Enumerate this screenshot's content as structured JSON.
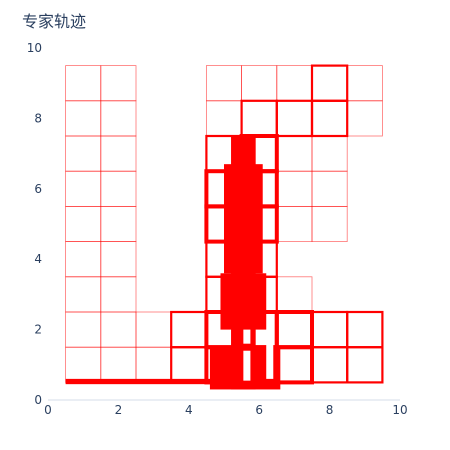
{
  "chart_data": {
    "type": "line",
    "title": "专家轨迹",
    "xlabel": "",
    "ylabel": "",
    "xlim": [
      0,
      10
    ],
    "ylim": [
      0,
      10
    ],
    "x_ticks": [
      0,
      2,
      4,
      6,
      8,
      10
    ],
    "y_ticks": [
      0,
      2,
      4,
      6,
      8,
      10
    ],
    "grid": false,
    "line_color": "#ff0000",
    "background": "#ffffff",
    "cell_size": 1,
    "grid_cells": [
      [
        0.5,
        0.5,
        1
      ],
      [
        0.5,
        1.5,
        1
      ],
      [
        0.5,
        2.5,
        1
      ],
      [
        0.5,
        3.5,
        1
      ],
      [
        0.5,
        4.5,
        1
      ],
      [
        0.5,
        5.5,
        1
      ],
      [
        0.5,
        6.5,
        1
      ],
      [
        0.5,
        7.5,
        1
      ],
      [
        0.5,
        8.5,
        1
      ],
      [
        1.5,
        0.5,
        1
      ],
      [
        1.5,
        1.5,
        1
      ],
      [
        1.5,
        2.5,
        1
      ],
      [
        1.5,
        3.5,
        1
      ],
      [
        1.5,
        4.5,
        1
      ],
      [
        1.5,
        5.5,
        1
      ],
      [
        1.5,
        6.5,
        1
      ],
      [
        1.5,
        7.5,
        1
      ],
      [
        1.5,
        8.5,
        1
      ],
      [
        2.5,
        0.5,
        1
      ],
      [
        2.5,
        1.5,
        1
      ],
      [
        3.5,
        0.5,
        2
      ],
      [
        3.5,
        1.5,
        2
      ],
      [
        4.5,
        0.5,
        3
      ],
      [
        4.5,
        1.5,
        3
      ],
      [
        4.5,
        2.5,
        2
      ],
      [
        4.5,
        3.5,
        2
      ],
      [
        4.5,
        4.5,
        3
      ],
      [
        4.5,
        5.5,
        3
      ],
      [
        4.5,
        6.5,
        2
      ],
      [
        4.5,
        7.5,
        1
      ],
      [
        4.5,
        8.5,
        1
      ],
      [
        5.5,
        0.5,
        3
      ],
      [
        5.5,
        1.5,
        3
      ],
      [
        5.5,
        2.5,
        2
      ],
      [
        5.5,
        3.5,
        2
      ],
      [
        5.5,
        4.5,
        3
      ],
      [
        5.5,
        5.5,
        3
      ],
      [
        5.5,
        6.5,
        3
      ],
      [
        5.5,
        7.5,
        2
      ],
      [
        5.5,
        8.5,
        1
      ],
      [
        6.5,
        0.5,
        3
      ],
      [
        6.5,
        1.5,
        3
      ],
      [
        6.5,
        2.5,
        1
      ],
      [
        6.5,
        4.5,
        1
      ],
      [
        6.5,
        5.5,
        1
      ],
      [
        6.5,
        6.5,
        1
      ],
      [
        6.5,
        7.5,
        2
      ],
      [
        6.5,
        8.5,
        1
      ],
      [
        7.5,
        0.5,
        2
      ],
      [
        7.5,
        1.5,
        2
      ],
      [
        7.5,
        4.5,
        1
      ],
      [
        7.5,
        5.5,
        1
      ],
      [
        7.5,
        6.5,
        1
      ],
      [
        7.5,
        7.5,
        2
      ],
      [
        7.5,
        8.5,
        2
      ],
      [
        8.5,
        0.5,
        2
      ],
      [
        8.5,
        1.5,
        2
      ],
      [
        8.5,
        7.5,
        1
      ],
      [
        8.5,
        8.5,
        1
      ]
    ],
    "thick_bars": [
      {
        "x": [
          4.9,
          6.2
        ],
        "y": [
          2.0,
          3.6
        ]
      },
      {
        "x": [
          5.0,
          6.1
        ],
        "y": [
          3.6,
          6.7
        ]
      },
      {
        "x": [
          5.2,
          5.9
        ],
        "y": [
          0.3,
          7.5
        ]
      },
      {
        "x": [
          4.6,
          6.6
        ],
        "y": [
          0.3,
          1.5
        ]
      },
      {
        "x": [
          0.5,
          4.7
        ],
        "y": [
          0.45,
          0.6
        ]
      }
    ]
  }
}
